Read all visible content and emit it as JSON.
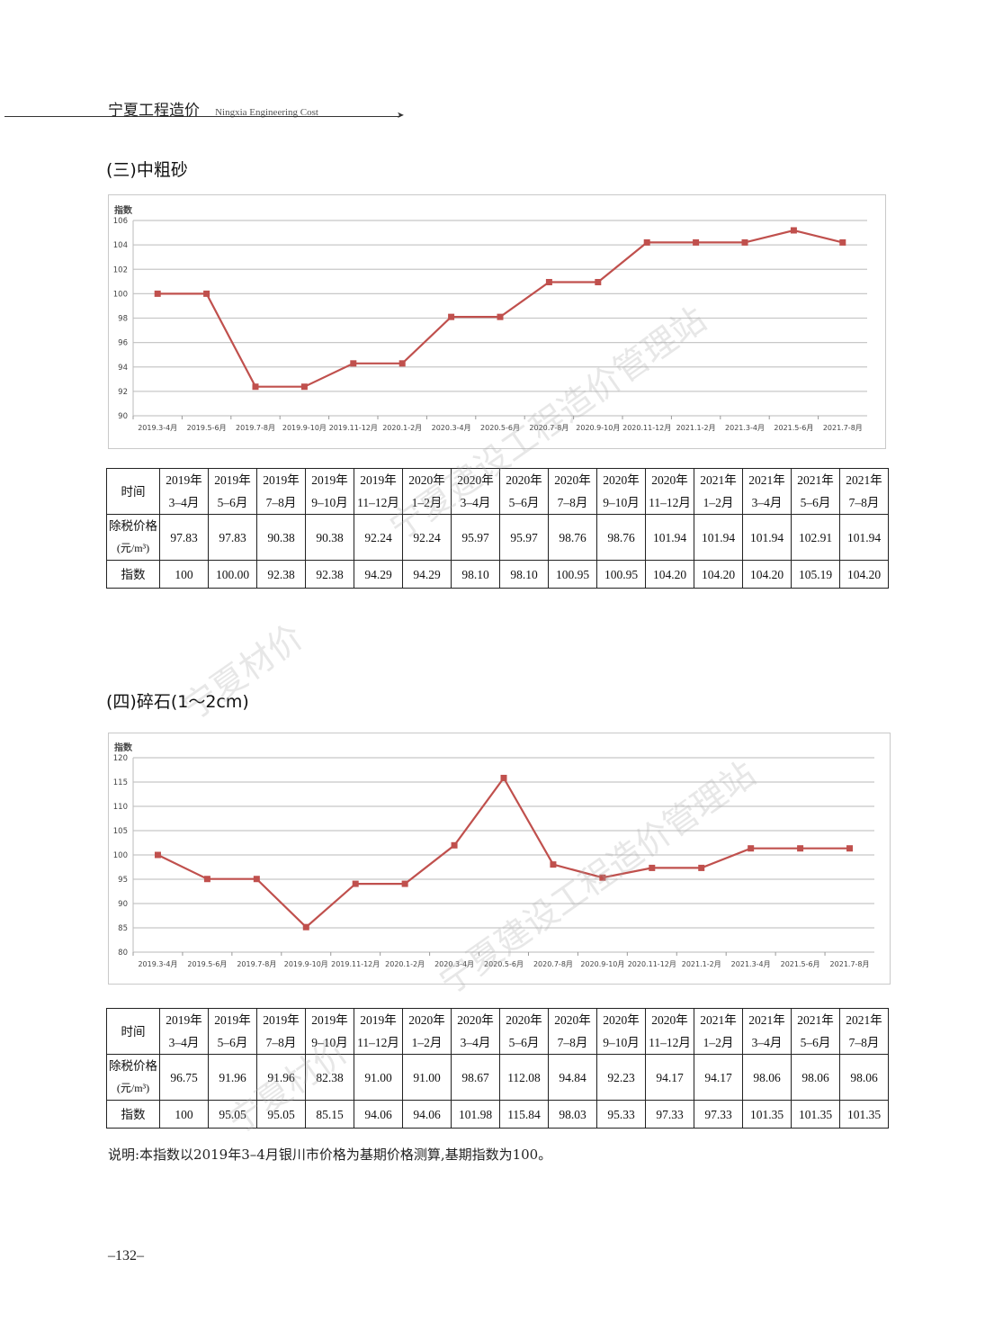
{
  "header": {
    "title_cn": "宁夏工程造价",
    "title_en": "Ningxia Engineering Cost"
  },
  "section3": {
    "title": "(三)中粗砂",
    "chart_data": {
      "type": "line",
      "ylabel": "指数",
      "ylim": [
        90,
        106
      ],
      "yticks": [
        90,
        92,
        94,
        96,
        98,
        100,
        102,
        104,
        106
      ],
      "categories": [
        "2019.3-4月",
        "2019.5-6月",
        "2019.7-8月",
        "2019.9-10月",
        "2019.11-12月",
        "2020.1-2月",
        "2020.3-4月",
        "2020.5-6月",
        "2020.7-8月",
        "2020.9-10月",
        "2020.11-12月",
        "2021.1-2月",
        "2021.3-4月",
        "2021.5-6月",
        "2021.7-8月"
      ],
      "values": [
        100,
        100,
        92.38,
        92.38,
        94.29,
        94.29,
        98.1,
        98.1,
        100.95,
        100.95,
        104.2,
        104.2,
        104.2,
        105.19,
        104.2
      ],
      "color": "#c0504d",
      "grid": true
    },
    "table": {
      "row_headers": [
        [
          "时间"
        ],
        [
          "除税价格",
          "(元/m³)"
        ],
        [
          "指数"
        ]
      ],
      "periods": [
        [
          "2019年",
          "3–4月"
        ],
        [
          "2019年",
          "5–6月"
        ],
        [
          "2019年",
          "7–8月"
        ],
        [
          "2019年",
          "9–10月"
        ],
        [
          "2019年",
          "11–12月"
        ],
        [
          "2020年",
          "1–2月"
        ],
        [
          "2020年",
          "3–4月"
        ],
        [
          "2020年",
          "5–6月"
        ],
        [
          "2020年",
          "7–8月"
        ],
        [
          "2020年",
          "9–10月"
        ],
        [
          "2020年",
          "11–12月"
        ],
        [
          "2021年",
          "1–2月"
        ],
        [
          "2021年",
          "3–4月"
        ],
        [
          "2021年",
          "5–6月"
        ],
        [
          "2021年",
          "7–8月"
        ]
      ],
      "prices": [
        "97.83",
        "97.83",
        "90.38",
        "90.38",
        "92.24",
        "92.24",
        "95.97",
        "95.97",
        "98.76",
        "98.76",
        "101.94",
        "101.94",
        "101.94",
        "102.91",
        "101.94"
      ],
      "indices": [
        "100",
        "100.00",
        "92.38",
        "92.38",
        "94.29",
        "94.29",
        "98.10",
        "98.10",
        "100.95",
        "100.95",
        "104.20",
        "104.20",
        "104.20",
        "105.19",
        "104.20"
      ]
    }
  },
  "section4": {
    "title": "(四)碎石(1～2cm)",
    "chart_data": {
      "type": "line",
      "ylabel": "指数",
      "ylim": [
        80,
        120
      ],
      "yticks": [
        80,
        85,
        90,
        95,
        100,
        105,
        110,
        115,
        120
      ],
      "categories": [
        "2019.3-4月",
        "2019.5-6月",
        "2019.7-8月",
        "2019.9-10月",
        "2019.11-12月",
        "2020.1-2月",
        "2020.3-4月",
        "2020.5-6月",
        "2020.7-8月",
        "2020.9-10月",
        "2020.11-12月",
        "2021.1-2月",
        "2021.3-4月",
        "2021.5-6月",
        "2021.7-8月"
      ],
      "values": [
        100,
        95.05,
        95.05,
        85.15,
        94.06,
        94.06,
        101.98,
        115.84,
        98.03,
        95.33,
        97.33,
        97.33,
        101.35,
        101.35,
        101.35
      ],
      "color": "#c0504d",
      "grid": true
    },
    "table": {
      "row_headers": [
        [
          "时间"
        ],
        [
          "除税价格",
          "(元/m³)"
        ],
        [
          "指数"
        ]
      ],
      "periods": [
        [
          "2019年",
          "3–4月"
        ],
        [
          "2019年",
          "5–6月"
        ],
        [
          "2019年",
          "7–8月"
        ],
        [
          "2019年",
          "9–10月"
        ],
        [
          "2019年",
          "11–12月"
        ],
        [
          "2020年",
          "1–2月"
        ],
        [
          "2020年",
          "3–4月"
        ],
        [
          "2020年",
          "5–6月"
        ],
        [
          "2020年",
          "7–8月"
        ],
        [
          "2020年",
          "9–10月"
        ],
        [
          "2020年",
          "11–12月"
        ],
        [
          "2021年",
          "1–2月"
        ],
        [
          "2021年",
          "3–4月"
        ],
        [
          "2021年",
          "5–6月"
        ],
        [
          "2021年",
          "7–8月"
        ]
      ],
      "prices": [
        "96.75",
        "91.96",
        "91.96",
        "82.38",
        "91.00",
        "91.00",
        "98.67",
        "112.08",
        "94.84",
        "92.23",
        "94.17",
        "94.17",
        "98.06",
        "98.06",
        "98.06"
      ],
      "indices": [
        "100",
        "95.05",
        "95.05",
        "85.15",
        "94.06",
        "94.06",
        "101.98",
        "115.84",
        "98.03",
        "95.33",
        "97.33",
        "97.33",
        "101.35",
        "101.35",
        "101.35"
      ]
    }
  },
  "note": "说明:本指数以2019年3–4月银川市价格为基期价格测算,基期指数为100。",
  "page_number": "–132–",
  "watermarks": [
    "宁夏建设工程造价管理站",
    "宁夏材价",
    "宁夏建设工程造价管理站",
    "宁夏材价"
  ]
}
